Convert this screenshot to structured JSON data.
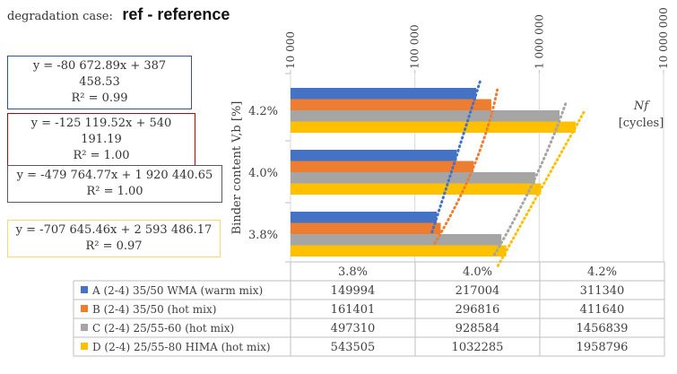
{
  "heading": {
    "caption": "degradation case:",
    "case_name": "ref - reference"
  },
  "chart_data": {
    "type": "bar",
    "orientation": "horizontal",
    "x_scale": "log",
    "xlim": [
      10000,
      10000000
    ],
    "x_ticks": [
      "10 000",
      "100 000",
      "1 000 000",
      "10 000 000"
    ],
    "x_tick_values": [
      10000,
      100000,
      1000000,
      10000000
    ],
    "xlabel_italic": "Nf",
    "xlabel_unit": "[cycles]",
    "ylabel": "Binder content  V,b [%]",
    "categories": [
      "3.8%",
      "4.0%",
      "4.2%"
    ],
    "legend": "data table below chart",
    "series": [
      {
        "name": "A (2-4) 35/50 WMA (warm mix)",
        "color": "#4472C4",
        "values": [
          149994,
          217004,
          311340
        ],
        "trendline": {
          "equation": "y = -80 672.89x + 387 458.53",
          "r2": "R² = 0.99"
        }
      },
      {
        "name": "B (2-4) 35/50 (hot mix)",
        "color": "#ED7D31",
        "values": [
          161401,
          296816,
          411640
        ],
        "trendline": {
          "equation": "y = -125 119.52x + 540 191.19",
          "r2": "R² = 1.00"
        }
      },
      {
        "name": "C (2-4) 25/55-60 (hot mix)",
        "color": "#A5A5A5",
        "values": [
          497310,
          928584,
          1456839
        ],
        "trendline": {
          "equation": "y = -479 764.77x + 1 920 440.65",
          "r2": "R² = 1.00"
        }
      },
      {
        "name": "D (2-4) 25/55-80 HIMA (hot mix)",
        "color": "#FFC000",
        "values": [
          543505,
          1032285,
          1958796
        ],
        "trendline": {
          "equation": "y = -707 645.46x + 2 593 486.17",
          "r2": "R² = 0.97"
        }
      }
    ]
  },
  "equation_box_colors": [
    "#2F5597",
    "#C00000",
    "#595959",
    "#FFD966"
  ]
}
